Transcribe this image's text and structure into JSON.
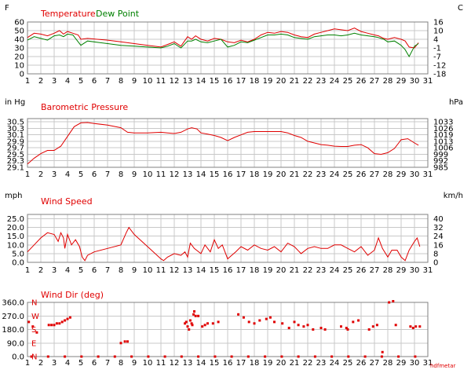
{
  "colors": {
    "red": "#e00000",
    "green": "#008000",
    "grid": "#c8c8c8",
    "frame": "#808080"
  },
  "credit": "hdfmetar",
  "chart_data": [
    {
      "type": "line",
      "title": "Temperature",
      "title2": "Dew Point",
      "left_unit": "F",
      "right_unit": "C",
      "x_ticks": [
        "1",
        "2",
        "3",
        "4",
        "5",
        "6",
        "7",
        "8",
        "9",
        "10",
        "11",
        "12",
        "13",
        "14",
        "15",
        "16",
        "17",
        "18",
        "19",
        "20",
        "21",
        "22",
        "23",
        "24",
        "25",
        "26",
        "27",
        "28",
        "29",
        "30",
        "31"
      ],
      "ylim": [
        0,
        60
      ],
      "y_ticks": [
        "0",
        "10",
        "20",
        "30",
        "40",
        "50",
        "60"
      ],
      "right_ticks": [
        "-18",
        "-12",
        "-7",
        "-1",
        "4",
        "10",
        "16"
      ],
      "series": [
        {
          "name": "Temperature",
          "color": "#e00000",
          "x": [
            1,
            1.5,
            2,
            2.5,
            3,
            3.4,
            3.7,
            4,
            4.4,
            4.8,
            5,
            5.5,
            7,
            8,
            9,
            10,
            11,
            11.5,
            12,
            12.5,
            13,
            13.3,
            13.6,
            14,
            14.5,
            15,
            15.5,
            16,
            16.5,
            17,
            17.5,
            18,
            18.5,
            19,
            19.5,
            20,
            20.5,
            21,
            21.5,
            22,
            22.5,
            23,
            23.5,
            24,
            24.5,
            25,
            25.5,
            26,
            26.5,
            27,
            27.3,
            27.7,
            28,
            28.5,
            29,
            29.3,
            29.6,
            30,
            30.3
          ],
          "values": [
            42,
            47,
            46,
            44,
            47,
            50,
            46,
            49,
            47,
            45,
            40,
            41,
            39,
            37,
            35,
            33,
            31,
            34,
            37,
            32,
            43,
            40,
            44,
            40,
            38,
            41,
            40,
            37,
            36,
            39,
            37,
            40,
            45,
            48,
            47,
            49,
            48,
            45,
            43,
            42,
            46,
            48,
            50,
            52,
            51,
            50,
            53,
            49,
            47,
            45,
            44,
            41,
            40,
            42,
            40,
            38,
            31,
            30,
            36
          ]
        },
        {
          "name": "Dew Point",
          "color": "#008000",
          "x": [
            1,
            1.5,
            2,
            2.5,
            3,
            3.4,
            3.7,
            4,
            4.4,
            4.8,
            5,
            5.5,
            7,
            8,
            9,
            10,
            11,
            11.5,
            12,
            12.5,
            13,
            13.3,
            13.6,
            14,
            14.5,
            15,
            15.5,
            16,
            16.5,
            17,
            17.5,
            18,
            18.5,
            19,
            19.5,
            20,
            20.5,
            21,
            21.5,
            22,
            22.5,
            23,
            23.5,
            24,
            24.5,
            25,
            25.5,
            26,
            26.5,
            27,
            27.3,
            27.7,
            28,
            28.5,
            29,
            29.3,
            29.6,
            30,
            30.3
          ],
          "values": [
            39,
            43,
            41,
            39,
            44,
            45,
            43,
            46,
            45,
            37,
            33,
            38,
            35,
            33,
            32,
            31,
            30,
            32,
            35,
            30,
            38,
            38,
            40,
            37,
            36,
            38,
            40,
            31,
            33,
            37,
            36,
            39,
            42,
            45,
            45,
            46,
            45,
            42,
            41,
            40,
            43,
            44,
            45,
            45,
            44,
            45,
            47,
            45,
            44,
            43,
            42,
            40,
            37,
            38,
            33,
            28,
            20,
            32,
            35
          ]
        }
      ]
    },
    {
      "type": "line",
      "title": "Barometric Pressure",
      "left_unit": "in Hg",
      "right_unit": "hPa",
      "x_ticks": [
        "1",
        "2",
        "3",
        "4",
        "5",
        "6",
        "7",
        "8",
        "9",
        "10",
        "11",
        "12",
        "13",
        "14",
        "15",
        "16",
        "17",
        "18",
        "19",
        "20",
        "21",
        "22",
        "23",
        "24",
        "25",
        "26",
        "27",
        "28",
        "29",
        "30",
        "31"
      ],
      "ylim": [
        29.1,
        30.6
      ],
      "y_ticks": [
        "29.1",
        "29.3",
        "29.5",
        "29.7",
        "29.9",
        "30.1",
        "30.3",
        "30.5"
      ],
      "right_ticks": [
        "985",
        "992",
        "999",
        "1006",
        "1013",
        "1019",
        "1026",
        "1033"
      ],
      "series": [
        {
          "name": "Barometric Pressure",
          "color": "#e00000",
          "x": [
            1,
            1.5,
            2,
            2.5,
            3,
            3.5,
            4,
            4.5,
            5,
            5.5,
            6,
            7,
            8,
            8.5,
            9,
            10,
            11,
            11.5,
            12,
            12.5,
            13,
            13.3,
            13.7,
            14,
            14.5,
            15,
            15.5,
            16,
            16.5,
            17,
            17.5,
            18,
            18.5,
            19,
            19.5,
            20,
            20.5,
            21,
            21.5,
            22,
            22.5,
            23,
            23.5,
            24,
            24.5,
            25,
            25.5,
            26,
            26.5,
            27,
            27.5,
            28,
            28.5,
            29,
            29.5,
            30,
            30.3
          ],
          "values": [
            29.2,
            29.38,
            29.52,
            29.62,
            29.62,
            29.75,
            30.05,
            30.35,
            30.47,
            30.48,
            30.45,
            30.4,
            30.32,
            30.18,
            30.16,
            30.16,
            30.18,
            30.16,
            30.14,
            30.18,
            30.28,
            30.32,
            30.28,
            30.16,
            30.12,
            30.08,
            30.02,
            29.92,
            30.02,
            30.1,
            30.18,
            30.2,
            30.2,
            30.2,
            30.2,
            30.2,
            30.16,
            30.08,
            30.02,
            29.9,
            29.85,
            29.8,
            29.78,
            29.75,
            29.74,
            29.74,
            29.78,
            29.8,
            29.7,
            29.52,
            29.5,
            29.55,
            29.68,
            29.95,
            29.98,
            29.85,
            29.78
          ]
        }
      ]
    },
    {
      "type": "line",
      "title": "Wind Speed",
      "left_unit": "mph",
      "right_unit": "km/h",
      "x_ticks": [
        "1",
        "2",
        "3",
        "4",
        "5",
        "6",
        "7",
        "8",
        "9",
        "10",
        "11",
        "12",
        "13",
        "14",
        "15",
        "16",
        "17",
        "18",
        "19",
        "20",
        "21",
        "22",
        "23",
        "24",
        "25",
        "26",
        "27",
        "28",
        "29",
        "30",
        "31"
      ],
      "ylim": [
        0,
        27.5
      ],
      "y_ticks": [
        "0.0",
        "5.0",
        "10.0",
        "15.0",
        "20.0",
        "25.0"
      ],
      "right_ticks": [
        "0",
        "8",
        "16",
        "24",
        "32",
        "40"
      ],
      "series": [
        {
          "name": "Wind Speed",
          "color": "#e00000",
          "x": [
            1,
            1.5,
            2,
            2.5,
            3,
            3.3,
            3.5,
            3.7,
            3.8,
            4,
            4.3,
            4.6,
            4.9,
            5.1,
            5.3,
            5.5,
            6,
            7,
            8,
            8.4,
            8.6,
            9,
            10,
            11,
            11.2,
            11.5,
            12,
            12.5,
            12.8,
            13,
            13.2,
            13.5,
            14,
            14.3,
            14.7,
            15,
            15.3,
            15.6,
            16,
            16.3,
            16.6,
            17,
            17.5,
            18,
            18.5,
            19,
            19.5,
            20,
            20.5,
            21,
            21.5,
            22,
            22.5,
            23,
            23.5,
            24,
            24.5,
            25,
            25.5,
            26,
            26.5,
            27,
            27.3,
            27.6,
            28,
            28.3,
            28.7,
            29,
            29.3,
            29.6,
            30,
            30.2,
            30.4
          ],
          "values": [
            6,
            10,
            14,
            17,
            16,
            12,
            17,
            14,
            8,
            16,
            10,
            13,
            9,
            3,
            1,
            4,
            6,
            8,
            10,
            17,
            20,
            16,
            9,
            2,
            1,
            3,
            5,
            4,
            6,
            3,
            11,
            8,
            5,
            10,
            6,
            13,
            8,
            10,
            2,
            4,
            6,
            9,
            7,
            10,
            8,
            7,
            9,
            6,
            11,
            9,
            5,
            8,
            9,
            8,
            8,
            10,
            10,
            8,
            6,
            9,
            4,
            7,
            14,
            8,
            3,
            7,
            7,
            3,
            1,
            7,
            12,
            14,
            9
          ]
        }
      ]
    },
    {
      "type": "scatter",
      "title": "Wind Dir (deg)",
      "x_ticks": [
        "1",
        "2",
        "3",
        "4",
        "5",
        "6",
        "7",
        "8",
        "9",
        "10",
        "11",
        "12",
        "13",
        "14",
        "15",
        "16",
        "17",
        "18",
        "19",
        "20",
        "21",
        "22",
        "23",
        "24",
        "25",
        "26",
        "27",
        "28",
        "29",
        "30",
        "31"
      ],
      "ylim": [
        0,
        360
      ],
      "y_ticks": [
        "0.0",
        "90.0",
        "180.0",
        "270.0",
        "360.0"
      ],
      "compass": [
        "N",
        "E",
        "S",
        "W",
        "N"
      ],
      "series": [
        {
          "name": "Wind Dir",
          "color": "#e00000",
          "x": [
            1.1,
            1.4,
            1.7,
            2.6,
            2.8,
            3.0,
            3.2,
            3.4,
            3.6,
            3.8,
            4.0,
            4.2,
            8.0,
            8.3,
            8.5,
            12.8,
            12.9,
            13.0,
            13.1,
            13.2,
            13.3,
            13.35,
            13.45,
            13.5,
            13.6,
            13.8,
            14.1,
            14.3,
            14.5,
            14.9,
            15.3,
            16.8,
            17.2,
            17.6,
            18.0,
            18.4,
            18.9,
            19.2,
            19.5,
            20.1,
            20.6,
            21.0,
            21.3,
            21.7,
            22.0,
            22.4,
            23.0,
            23.3,
            24.5,
            24.9,
            25.0,
            25.4,
            25.8,
            26.6,
            26.9,
            27.2,
            27.6,
            28.1,
            28.4,
            28.6,
            29.7,
            29.9,
            30.1,
            30.4
          ],
          "values": [
            230,
            200,
            160,
            210,
            210,
            210,
            220,
            220,
            230,
            240,
            250,
            260,
            90,
            100,
            100,
            220,
            230,
            200,
            180,
            240,
            220,
            210,
            280,
            300,
            270,
            270,
            200,
            210,
            220,
            220,
            230,
            280,
            260,
            230,
            220,
            240,
            250,
            260,
            230,
            220,
            190,
            230,
            210,
            200,
            210,
            180,
            190,
            180,
            200,
            190,
            180,
            230,
            240,
            180,
            200,
            210,
            30,
            360,
            370,
            210,
            200,
            190,
            200,
            200
          ]
        }
      ]
    }
  ]
}
